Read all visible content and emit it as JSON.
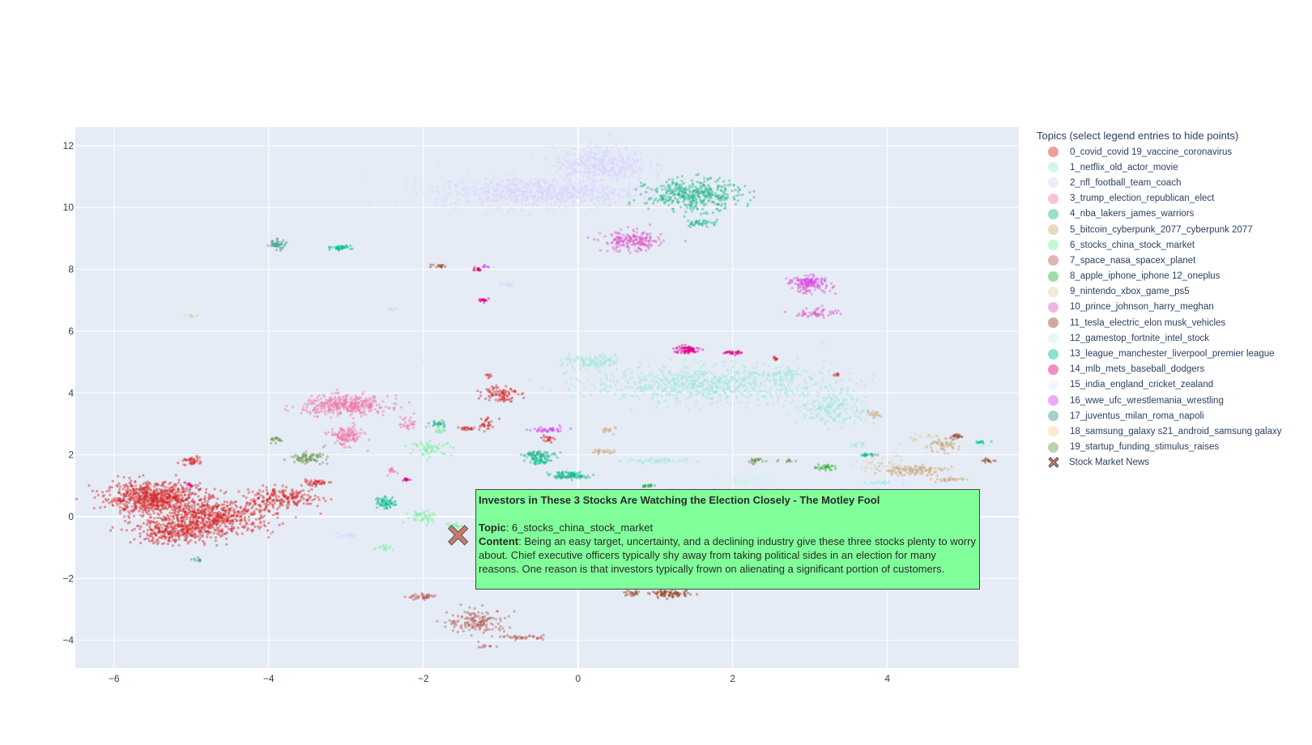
{
  "chart_data": {
    "type": "scatter",
    "xlim": [
      -6.5,
      5.7
    ],
    "ylim": [
      -4.9,
      12.6
    ],
    "x_ticks": [
      -6,
      -4,
      -2,
      0,
      2,
      4
    ],
    "x_tick_labels": [
      "−6",
      "−4",
      "−2",
      "0",
      "2",
      "4"
    ],
    "y_ticks": [
      -4,
      -2,
      0,
      2,
      4,
      6,
      8,
      10,
      12
    ],
    "y_tick_labels": [
      "−4",
      "−2",
      "0",
      "2",
      "4",
      "6",
      "8",
      "10",
      "12"
    ],
    "grid": true,
    "legend_title": "Topics (select legend entries to hide points)",
    "legend_position": "right",
    "series": [
      {
        "name": "0_covid_covid 19_vaccine_coronavirus",
        "color": "#d62728",
        "clusters": [
          [
            -5.5,
            0.6,
            0.55,
            0.45,
            700
          ],
          [
            -4.7,
            0.0,
            0.7,
            0.5,
            600
          ],
          [
            -5.2,
            -0.5,
            0.5,
            0.35,
            300
          ],
          [
            -3.8,
            0.6,
            0.45,
            0.3,
            200
          ],
          [
            -5.0,
            1.8,
            0.1,
            0.12,
            40
          ],
          [
            -3.4,
            1.1,
            0.2,
            0.08,
            40
          ],
          [
            -1.0,
            4.0,
            0.2,
            0.25,
            90
          ],
          [
            -1.2,
            3.0,
            0.1,
            0.25,
            30
          ],
          [
            -0.4,
            2.5,
            0.07,
            0.15,
            20
          ],
          [
            -1.45,
            2.85,
            0.12,
            0.06,
            20
          ],
          [
            2.55,
            5.1,
            0.05,
            0.05,
            10
          ],
          [
            3.35,
            4.6,
            0.05,
            0.04,
            8
          ],
          [
            -1.3,
            8.0,
            0.05,
            0.04,
            8
          ],
          [
            -1.15,
            4.55,
            0.05,
            0.08,
            8
          ]
        ]
      },
      {
        "name": "1_netflix_old_actor_movie",
        "color": "#9fe8dc",
        "clusters": [
          [
            1.7,
            4.3,
            1.4,
            0.55,
            800
          ],
          [
            3.3,
            3.5,
            0.4,
            0.5,
            200
          ],
          [
            0.2,
            5.0,
            0.35,
            0.2,
            120
          ],
          [
            1.0,
            1.8,
            0.35,
            0.08,
            50
          ],
          [
            3.9,
            1.1,
            0.2,
            0.06,
            20
          ],
          [
            3.6,
            2.3,
            0.1,
            0.08,
            15
          ],
          [
            2.6,
            4.6,
            0.2,
            0.1,
            30
          ]
        ]
      },
      {
        "name": "2_nfl_football_team_coach",
        "color": "#d9d2ff",
        "clusters": [
          [
            -0.5,
            10.5,
            1.2,
            0.45,
            700
          ],
          [
            0.3,
            11.4,
            0.55,
            0.5,
            400
          ],
          [
            -3.0,
            -0.6,
            0.15,
            0.06,
            20
          ],
          [
            -0.9,
            7.5,
            0.1,
            0.06,
            12
          ],
          [
            -2.4,
            6.7,
            0.06,
            0.05,
            10
          ],
          [
            0.6,
            8.8,
            0.1,
            0.15,
            15
          ]
        ]
      },
      {
        "name": "3_trump_election_republican_elect",
        "color": "#f07aa8",
        "clusters": [
          [
            -3.0,
            3.6,
            0.5,
            0.28,
            400
          ],
          [
            -3.0,
            2.6,
            0.2,
            0.28,
            140
          ],
          [
            -2.2,
            3.0,
            0.1,
            0.2,
            30
          ],
          [
            -2.4,
            1.5,
            0.05,
            0.12,
            15
          ]
        ]
      },
      {
        "name": "4_nba_lakers_james_warriors",
        "color": "#21b98a",
        "clusters": [
          [
            1.5,
            10.4,
            0.55,
            0.45,
            400
          ],
          [
            1.6,
            9.5,
            0.2,
            0.1,
            40
          ],
          [
            -0.5,
            2.0,
            0.2,
            0.1,
            70
          ],
          [
            -0.1,
            1.3,
            0.2,
            0.07,
            60
          ],
          [
            -2.5,
            0.5,
            0.12,
            0.15,
            35
          ],
          [
            -1.8,
            3.0,
            0.1,
            0.1,
            25
          ],
          [
            3.8,
            2.0,
            0.06,
            0.05,
            10
          ],
          [
            0.9,
            1.0,
            0.08,
            0.05,
            10
          ]
        ]
      },
      {
        "name": "5_bitcoin_cyberpunk_2077_cyberpunk 2077",
        "color": "#cba976",
        "clusters": [
          [
            4.3,
            1.5,
            0.4,
            0.15,
            120
          ],
          [
            4.7,
            2.3,
            0.2,
            0.2,
            60
          ],
          [
            3.8,
            3.3,
            0.1,
            0.1,
            20
          ],
          [
            0.3,
            2.1,
            0.15,
            0.06,
            25
          ],
          [
            0.4,
            2.8,
            0.1,
            0.1,
            15
          ],
          [
            4.8,
            1.2,
            0.2,
            0.06,
            30
          ]
        ]
      },
      {
        "name": "6_stocks_china_stock_market",
        "color": "#79f09a",
        "clusters": [
          [
            -1.9,
            2.2,
            0.25,
            0.2,
            60
          ],
          [
            -2.0,
            0.0,
            0.2,
            0.2,
            50
          ],
          [
            -1.6,
            -0.3,
            0.1,
            0.1,
            25
          ],
          [
            -2.5,
            -1.0,
            0.1,
            0.08,
            15
          ],
          [
            -1.8,
            2.8,
            0.1,
            0.1,
            15
          ]
        ]
      },
      {
        "name": "7_space_nasa_spacex_planet",
        "color": "#b85c55",
        "clusters": [
          [
            -1.3,
            -3.4,
            0.35,
            0.35,
            150
          ],
          [
            -2.0,
            -2.6,
            0.18,
            0.08,
            40
          ],
          [
            -0.7,
            -3.9,
            0.25,
            0.06,
            40
          ],
          [
            -1.2,
            -4.2,
            0.1,
            0.05,
            10
          ]
        ]
      },
      {
        "name": "8_apple_iphone_iphone 12_oneplus",
        "color": "#30b030",
        "clusters": [
          [
            3.2,
            1.6,
            0.15,
            0.08,
            30
          ],
          [
            0.9,
            1.0,
            0.08,
            0.04,
            10
          ]
        ]
      },
      {
        "name": "9_nintendo_xbox_game_ps5",
        "color": "#dcd3a8",
        "clusters": [
          [
            3.9,
            1.7,
            0.3,
            0.25,
            40
          ],
          [
            4.4,
            2.5,
            0.2,
            0.15,
            20
          ],
          [
            -5.0,
            6.5,
            0.06,
            0.04,
            10
          ]
        ]
      },
      {
        "name": "10_prince_johnson_harry_meghan",
        "color": "#e05cc8",
        "clusters": [
          [
            0.7,
            8.9,
            0.35,
            0.3,
            200
          ],
          [
            3.0,
            7.5,
            0.25,
            0.25,
            100
          ],
          [
            3.1,
            6.6,
            0.25,
            0.15,
            60
          ]
        ]
      },
      {
        "name": "11_tesla_electric_elon musk_vehicles",
        "color": "#9a4420",
        "clusters": [
          [
            1.2,
            -2.5,
            0.25,
            0.1,
            80
          ],
          [
            0.7,
            -2.5,
            0.1,
            0.08,
            20
          ],
          [
            -1.8,
            8.1,
            0.1,
            0.05,
            15
          ],
          [
            4.9,
            2.6,
            0.1,
            0.08,
            20
          ],
          [
            5.3,
            1.8,
            0.1,
            0.06,
            15
          ]
        ]
      },
      {
        "name": "12_gamestop_fortnite_intel_stock",
        "color": "#c6f2e8",
        "clusters": [
          [
            2.2,
            1.2,
            0.3,
            0.15,
            40
          ],
          [
            5.2,
            2.3,
            0.1,
            0.08,
            15
          ]
        ]
      },
      {
        "name": "13_league_manchester_liverpool_premier league",
        "color": "#00c08f",
        "clusters": [
          [
            -3.1,
            8.7,
            0.15,
            0.06,
            40
          ],
          [
            -0.5,
            1.8,
            0.15,
            0.1,
            40
          ],
          [
            -0.1,
            1.4,
            0.2,
            0.08,
            40
          ],
          [
            -2.5,
            0.4,
            0.1,
            0.15,
            30
          ],
          [
            3.7,
            2.0,
            0.05,
            0.05,
            12
          ],
          [
            5.2,
            2.4,
            0.08,
            0.05,
            12
          ]
        ]
      },
      {
        "name": "14_mlb_mets_baseball_dodgers",
        "color": "#e0008c",
        "clusters": [
          [
            1.4,
            5.4,
            0.15,
            0.12,
            80
          ],
          [
            2.0,
            5.3,
            0.1,
            0.06,
            30
          ],
          [
            -1.2,
            7.0,
            0.08,
            0.05,
            20
          ],
          [
            -2.2,
            1.2,
            0.05,
            0.05,
            15
          ],
          [
            -1.3,
            8.0,
            0.04,
            0.04,
            10
          ],
          [
            -5.0,
            1.0,
            0.06,
            0.05,
            12
          ]
        ]
      },
      {
        "name": "15_india_england_cricket_zealand",
        "color": "#e8ecfa",
        "clusters": [
          [
            -4.0,
            -0.6,
            0.2,
            0.1,
            30
          ],
          [
            -1.4,
            1.3,
            0.1,
            0.08,
            15
          ],
          [
            -2.0,
            5.0,
            0.05,
            0.05,
            8
          ]
        ]
      },
      {
        "name": "16_wwe_ufc_wrestlemania_wrestling",
        "color": "#d640f0",
        "clusters": [
          [
            3.0,
            7.6,
            0.2,
            0.15,
            60
          ],
          [
            -0.4,
            2.8,
            0.2,
            0.1,
            40
          ],
          [
            -1.2,
            8.1,
            0.05,
            0.04,
            8
          ]
        ]
      },
      {
        "name": "17_juventus_milan_roma_napoli",
        "color": "#3a9a8a",
        "clusters": [
          [
            -3.9,
            8.8,
            0.12,
            0.15,
            40
          ],
          [
            -4.9,
            -1.4,
            0.06,
            0.06,
            10
          ]
        ]
      },
      {
        "name": "18_samsung_galaxy s21_android_samsung galaxy",
        "color": "#ffcf99",
        "clusters": [
          [
            3.5,
            -0.2,
            0.05,
            0.05,
            5
          ]
        ]
      },
      {
        "name": "19_startup_funding_stimulus_raises",
        "color": "#6e9a4e",
        "clusters": [
          [
            -3.5,
            1.9,
            0.2,
            0.15,
            80
          ],
          [
            -3.9,
            2.5,
            0.1,
            0.08,
            20
          ],
          [
            2.3,
            1.8,
            0.12,
            0.1,
            25
          ],
          [
            2.7,
            1.8,
            0.08,
            0.05,
            12
          ]
        ]
      }
    ],
    "highlight": {
      "name": "Stock Market News",
      "x": -1.55,
      "y": -0.6,
      "marker": "x",
      "color": "#c97b6c"
    },
    "hover_label": {
      "title": "Investors in These 3 Stocks Are Watching the Election Closely - The Motley Fool",
      "topic_key": "Topic",
      "topic_value": ": 6_stocks_china_stock_market",
      "content_key": "Content",
      "content_value": ": Being an easy target, uncertainty, and a declining industry give these three stocks plenty to worry about. Chief executive officers typically shy away from taking political sides in an election for many reasons. One reason is that investors typically frown on alienating a significant portion of customers.",
      "background": "#80ff9a"
    }
  }
}
